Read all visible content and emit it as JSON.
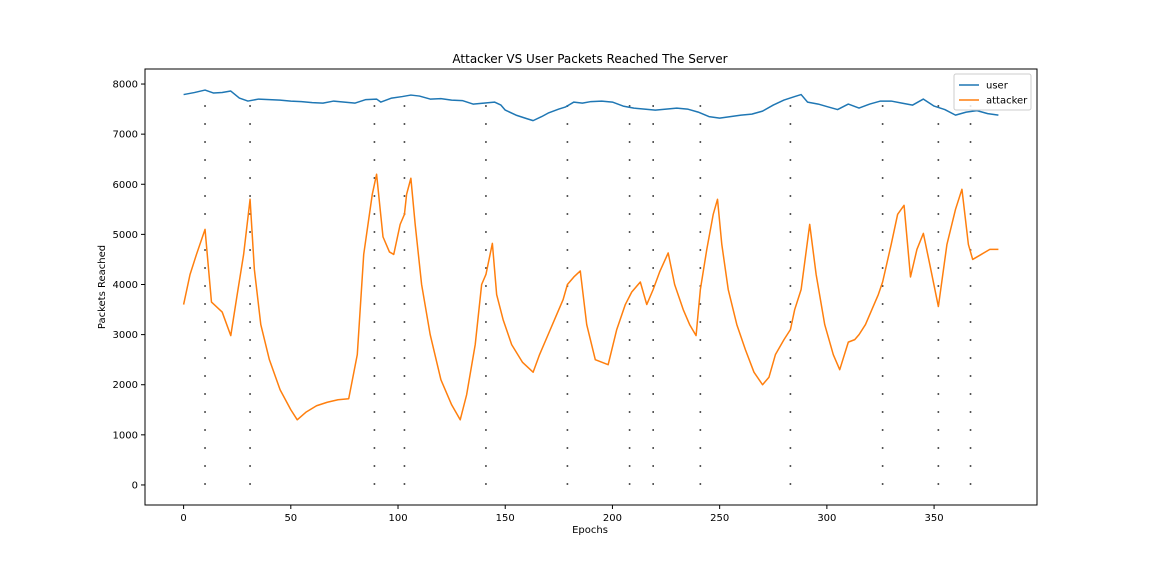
{
  "chart_data": {
    "type": "line",
    "title": "Attacker VS User Packets Reached The Server",
    "xlabel": "Epochs",
    "ylabel": "Packets Reached",
    "xlim": [
      -18,
      398
    ],
    "ylim": [
      -400,
      8300
    ],
    "xticks": [
      0,
      50,
      100,
      150,
      200,
      250,
      300,
      350
    ],
    "yticks": [
      0,
      1000,
      2000,
      3000,
      4000,
      5000,
      6000,
      7000,
      8000
    ],
    "grid": false,
    "legend_position": "top-right",
    "vlines": {
      "x": [
        10,
        31,
        89,
        103,
        141,
        179,
        208,
        219,
        241,
        283,
        326,
        352,
        367
      ],
      "y_range": [
        0,
        7600
      ],
      "color": "#555555",
      "style": "dotted"
    },
    "series": [
      {
        "name": "user",
        "color": "#1f77b4",
        "points": [
          [
            0,
            7790
          ],
          [
            5,
            7830
          ],
          [
            10,
            7880
          ],
          [
            14,
            7820
          ],
          [
            18,
            7830
          ],
          [
            22,
            7860
          ],
          [
            26,
            7720
          ],
          [
            30,
            7660
          ],
          [
            35,
            7700
          ],
          [
            40,
            7690
          ],
          [
            45,
            7680
          ],
          [
            50,
            7660
          ],
          [
            55,
            7650
          ],
          [
            60,
            7630
          ],
          [
            65,
            7620
          ],
          [
            70,
            7660
          ],
          [
            75,
            7640
          ],
          [
            80,
            7620
          ],
          [
            85,
            7690
          ],
          [
            90,
            7700
          ],
          [
            92,
            7640
          ],
          [
            97,
            7720
          ],
          [
            102,
            7750
          ],
          [
            106,
            7780
          ],
          [
            110,
            7760
          ],
          [
            115,
            7700
          ],
          [
            120,
            7710
          ],
          [
            125,
            7680
          ],
          [
            130,
            7670
          ],
          [
            135,
            7600
          ],
          [
            140,
            7620
          ],
          [
            145,
            7640
          ],
          [
            148,
            7580
          ],
          [
            150,
            7480
          ],
          [
            155,
            7380
          ],
          [
            160,
            7310
          ],
          [
            163,
            7270
          ],
          [
            167,
            7350
          ],
          [
            170,
            7420
          ],
          [
            175,
            7500
          ],
          [
            178,
            7540
          ],
          [
            182,
            7640
          ],
          [
            186,
            7620
          ],
          [
            190,
            7650
          ],
          [
            195,
            7660
          ],
          [
            200,
            7640
          ],
          [
            205,
            7560
          ],
          [
            210,
            7520
          ],
          [
            215,
            7500
          ],
          [
            220,
            7480
          ],
          [
            225,
            7500
          ],
          [
            230,
            7520
          ],
          [
            235,
            7500
          ],
          [
            240,
            7440
          ],
          [
            245,
            7350
          ],
          [
            250,
            7320
          ],
          [
            255,
            7350
          ],
          [
            260,
            7380
          ],
          [
            265,
            7400
          ],
          [
            270,
            7460
          ],
          [
            275,
            7580
          ],
          [
            280,
            7680
          ],
          [
            285,
            7750
          ],
          [
            288,
            7790
          ],
          [
            291,
            7640
          ],
          [
            296,
            7600
          ],
          [
            300,
            7550
          ],
          [
            305,
            7490
          ],
          [
            310,
            7600
          ],
          [
            315,
            7520
          ],
          [
            320,
            7600
          ],
          [
            325,
            7660
          ],
          [
            330,
            7660
          ],
          [
            335,
            7620
          ],
          [
            340,
            7580
          ],
          [
            345,
            7700
          ],
          [
            350,
            7560
          ],
          [
            355,
            7490
          ],
          [
            360,
            7380
          ],
          [
            365,
            7440
          ],
          [
            370,
            7470
          ],
          [
            375,
            7410
          ],
          [
            380,
            7380
          ]
        ]
      },
      {
        "name": "attacker",
        "color": "#ff7f0e",
        "points": [
          [
            0,
            3600
          ],
          [
            3,
            4200
          ],
          [
            6,
            4600
          ],
          [
            10,
            5100
          ],
          [
            13,
            3650
          ],
          [
            18,
            3450
          ],
          [
            22,
            2980
          ],
          [
            25,
            3800
          ],
          [
            28,
            4600
          ],
          [
            31,
            5700
          ],
          [
            33,
            4300
          ],
          [
            36,
            3200
          ],
          [
            40,
            2500
          ],
          [
            45,
            1900
          ],
          [
            50,
            1500
          ],
          [
            53,
            1300
          ],
          [
            57,
            1450
          ],
          [
            62,
            1580
          ],
          [
            67,
            1650
          ],
          [
            72,
            1700
          ],
          [
            77,
            1720
          ],
          [
            81,
            2600
          ],
          [
            84,
            4600
          ],
          [
            88,
            5800
          ],
          [
            90,
            6200
          ],
          [
            93,
            4950
          ],
          [
            96,
            4650
          ],
          [
            98,
            4600
          ],
          [
            101,
            5200
          ],
          [
            103,
            5400
          ],
          [
            104,
            5800
          ],
          [
            106,
            6120
          ],
          [
            108,
            5200
          ],
          [
            111,
            4000
          ],
          [
            115,
            3000
          ],
          [
            120,
            2100
          ],
          [
            125,
            1600
          ],
          [
            129,
            1300
          ],
          [
            132,
            1800
          ],
          [
            136,
            2800
          ],
          [
            139,
            4000
          ],
          [
            141,
            4200
          ],
          [
            144,
            4820
          ],
          [
            146,
            3800
          ],
          [
            149,
            3300
          ],
          [
            153,
            2800
          ],
          [
            158,
            2450
          ],
          [
            163,
            2250
          ],
          [
            166,
            2600
          ],
          [
            170,
            3000
          ],
          [
            174,
            3400
          ],
          [
            177,
            3700
          ],
          [
            179,
            4000
          ],
          [
            182,
            4150
          ],
          [
            185,
            4270
          ],
          [
            188,
            3200
          ],
          [
            192,
            2500
          ],
          [
            198,
            2400
          ],
          [
            202,
            3100
          ],
          [
            206,
            3600
          ],
          [
            209,
            3850
          ],
          [
            213,
            4050
          ],
          [
            216,
            3600
          ],
          [
            219,
            3900
          ],
          [
            222,
            4250
          ],
          [
            226,
            4630
          ],
          [
            229,
            4000
          ],
          [
            233,
            3500
          ],
          [
            236,
            3200
          ],
          [
            239,
            2980
          ],
          [
            241,
            3900
          ],
          [
            244,
            4700
          ],
          [
            247,
            5400
          ],
          [
            249,
            5700
          ],
          [
            251,
            4800
          ],
          [
            254,
            3900
          ],
          [
            258,
            3200
          ],
          [
            262,
            2700
          ],
          [
            266,
            2250
          ],
          [
            270,
            2000
          ],
          [
            273,
            2150
          ],
          [
            276,
            2600
          ],
          [
            280,
            2900
          ],
          [
            283,
            3100
          ],
          [
            285,
            3500
          ],
          [
            288,
            3900
          ],
          [
            292,
            5200
          ],
          [
            295,
            4200
          ],
          [
            299,
            3200
          ],
          [
            303,
            2600
          ],
          [
            306,
            2300
          ],
          [
            310,
            2850
          ],
          [
            313,
            2900
          ],
          [
            315,
            3000
          ],
          [
            318,
            3200
          ],
          [
            321,
            3500
          ],
          [
            324,
            3800
          ],
          [
            326,
            4050
          ],
          [
            330,
            4800
          ],
          [
            333,
            5400
          ],
          [
            336,
            5580
          ],
          [
            339,
            4150
          ],
          [
            342,
            4700
          ],
          [
            345,
            5020
          ],
          [
            348,
            4400
          ],
          [
            352,
            3560
          ],
          [
            356,
            4800
          ],
          [
            360,
            5500
          ],
          [
            363,
            5900
          ],
          [
            366,
            4800
          ],
          [
            368,
            4500
          ],
          [
            372,
            4600
          ],
          [
            376,
            4700
          ],
          [
            380,
            4700
          ]
        ]
      }
    ]
  }
}
